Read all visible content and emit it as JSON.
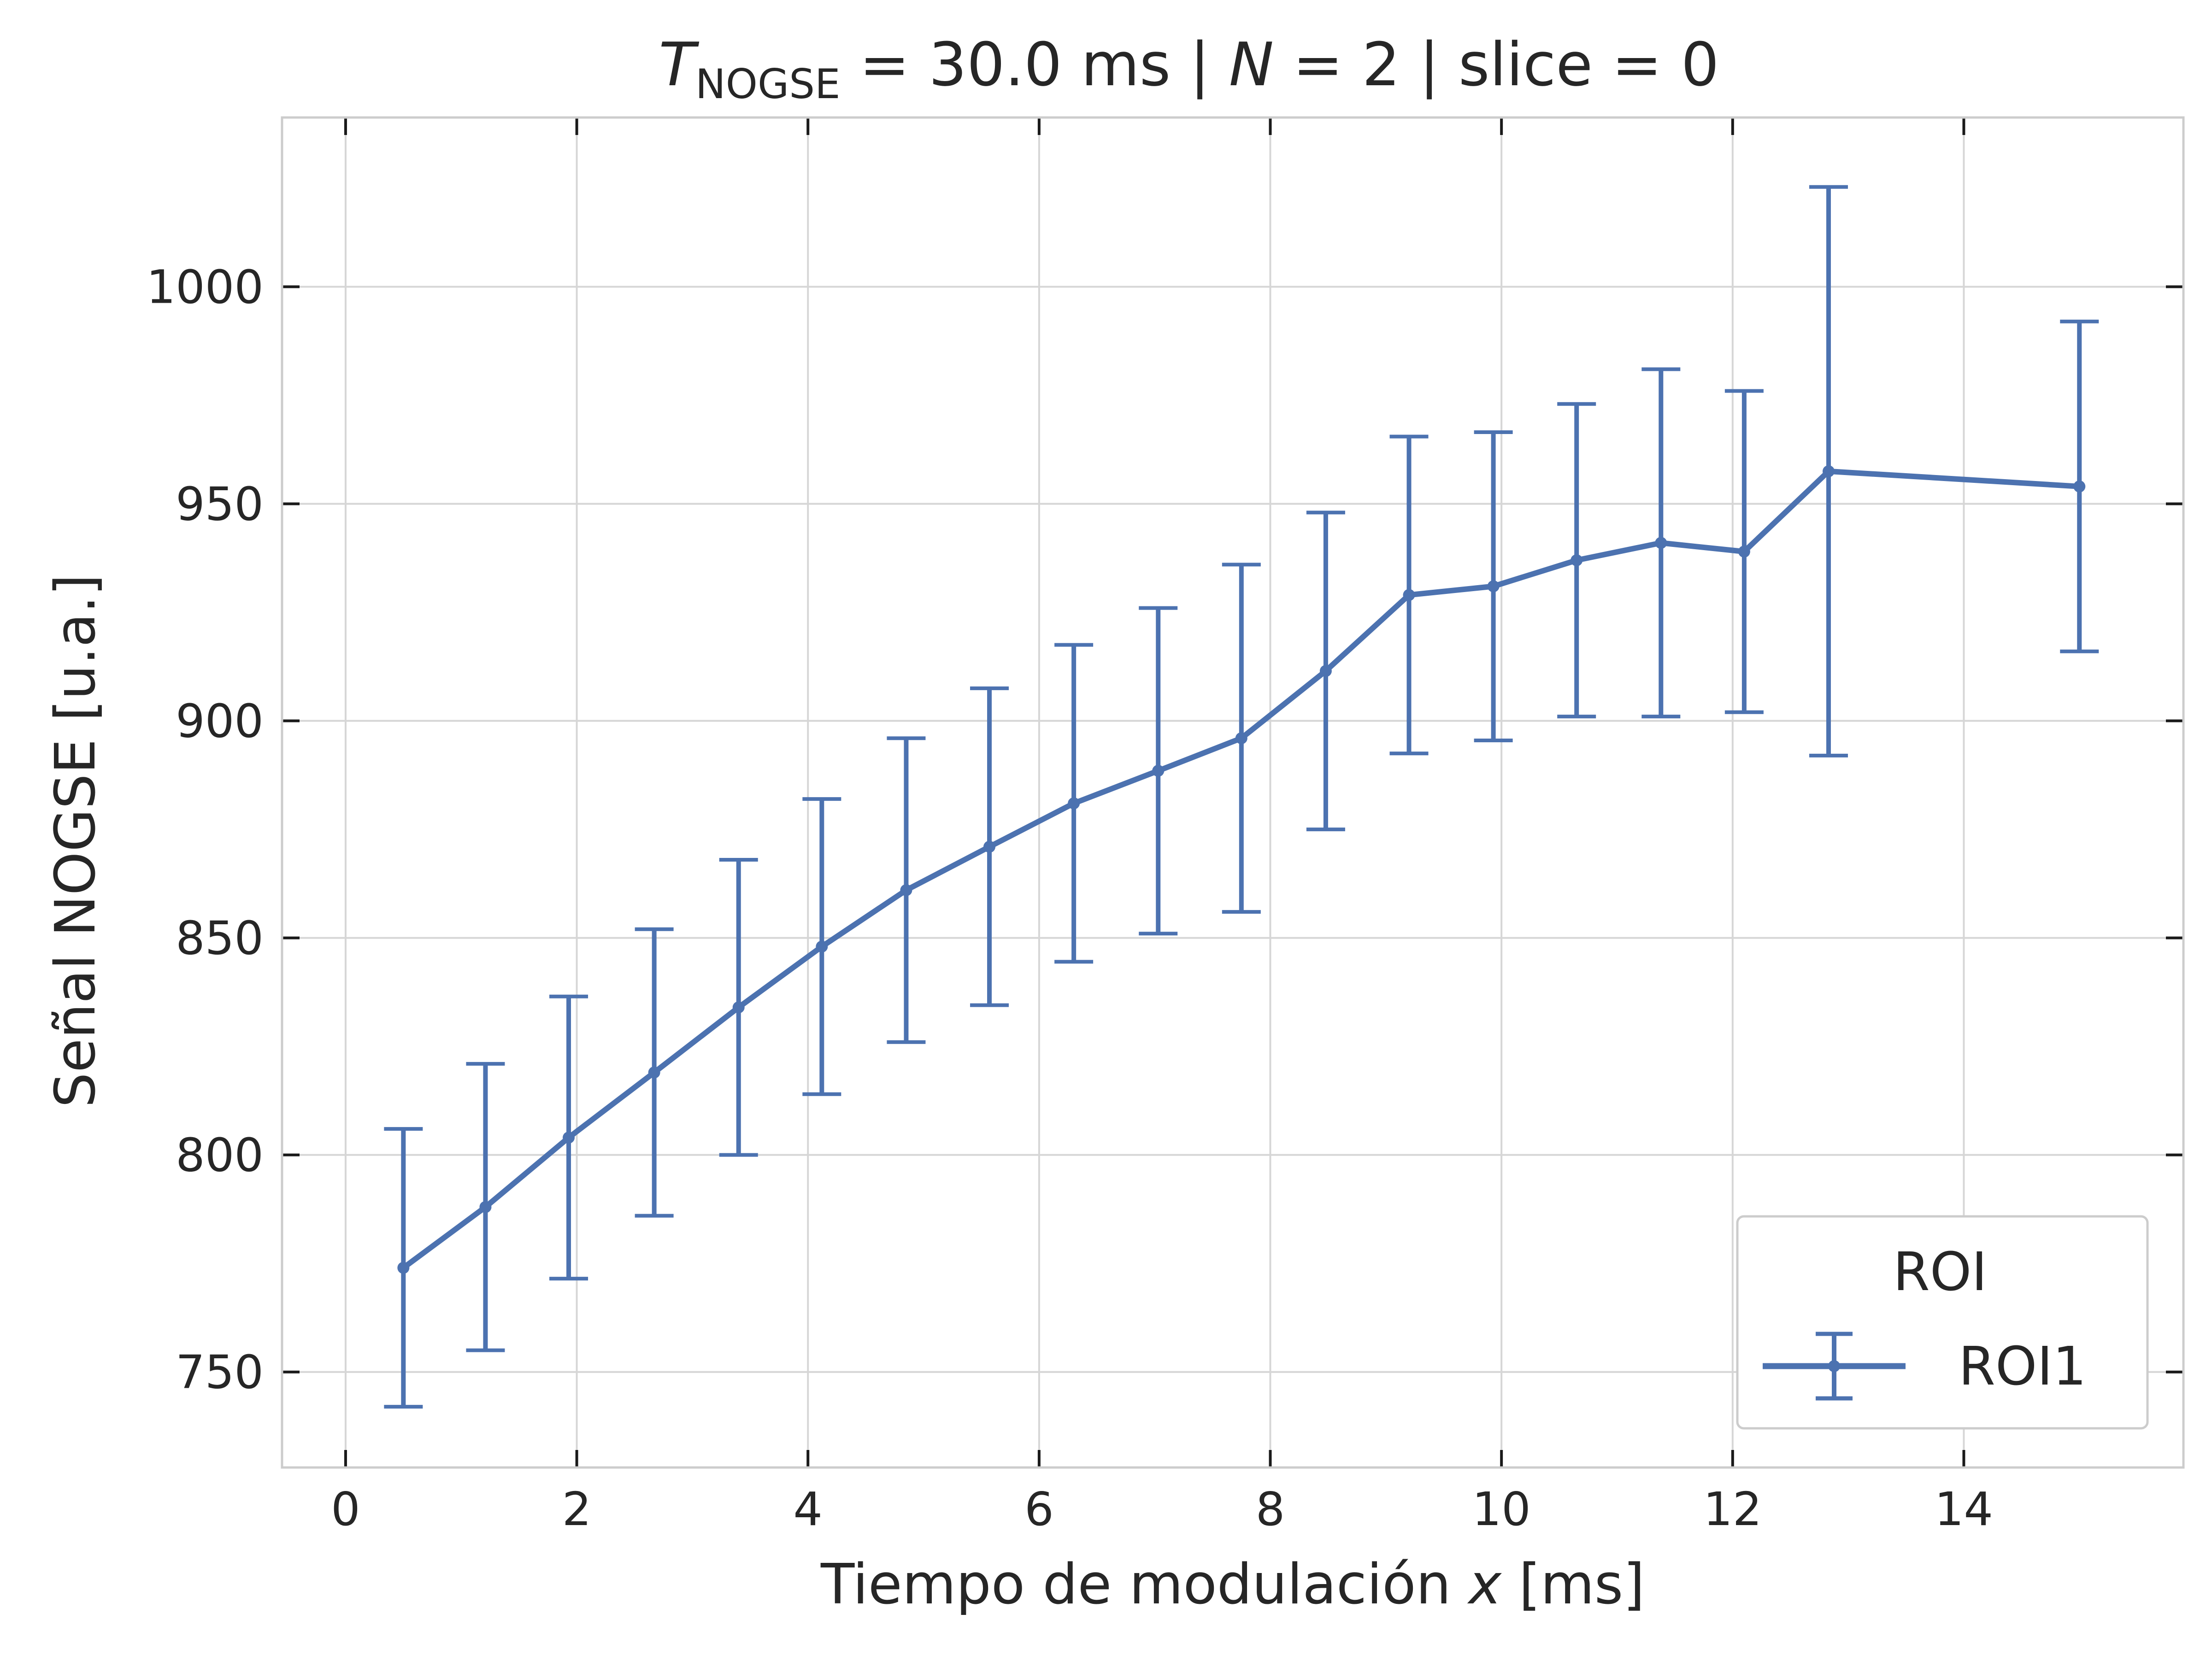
{
  "chart_data": {
    "type": "line",
    "title": {
      "symbol": "T",
      "subscript": "NOGSE",
      "part1": " = 30.0 ms | ",
      "n_symbol": "N",
      "part2": " = 2 | slice = 0"
    },
    "xlabel": {
      "prefix": "Tiempo de modulación ",
      "var": "x",
      "suffix": " [ms]"
    },
    "ylabel": "Señal NOGSE [u.a.]",
    "xlim": [
      -0.55,
      15.9
    ],
    "ylim": [
      728,
      1039
    ],
    "xticks": [
      0,
      2,
      4,
      6,
      8,
      10,
      12,
      14
    ],
    "yticks": [
      750,
      800,
      850,
      900,
      950,
      1000
    ],
    "grid": true,
    "legend": {
      "title": "ROI",
      "placement": "lower-right"
    },
    "series": [
      {
        "name": "ROI1",
        "color": "#4c72b0",
        "x": [
          0.5,
          1.21,
          1.93,
          2.67,
          3.4,
          4.12,
          4.85,
          5.57,
          6.3,
          7.03,
          7.75,
          8.48,
          9.2,
          9.93,
          10.65,
          11.38,
          12.1,
          12.83,
          15.0
        ],
        "y": [
          774,
          788,
          804,
          819,
          834,
          848,
          861,
          871,
          881,
          888.5,
          896,
          911.5,
          929,
          931,
          937,
          941,
          939,
          957.5,
          954
        ],
        "err": [
          32,
          33,
          32.5,
          33,
          34,
          34,
          35,
          36.5,
          36.5,
          37.5,
          40,
          36.5,
          36.5,
          35.5,
          36,
          40,
          37,
          65.5,
          38
        ]
      }
    ]
  }
}
